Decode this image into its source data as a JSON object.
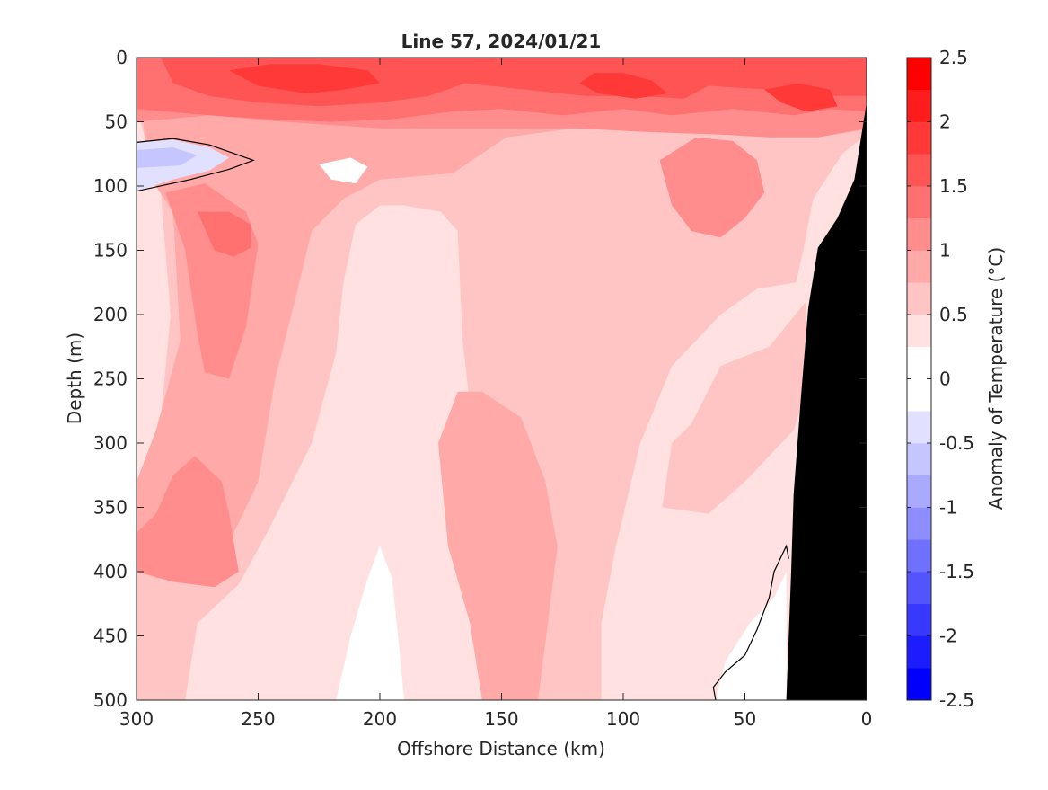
{
  "chart_data": {
    "type": "contour",
    "title": "Line 57, 2024/01/21",
    "xlabel": "Offshore Distance (km)",
    "ylabel": "Depth (m)",
    "x_reversed": true,
    "y_reversed": true,
    "xlim": [
      0,
      300
    ],
    "ylim": [
      0,
      500
    ],
    "x_ticks": [
      300,
      250,
      200,
      150,
      100,
      50,
      0
    ],
    "y_ticks": [
      0,
      50,
      100,
      150,
      200,
      250,
      300,
      350,
      400,
      450,
      500
    ],
    "colorbar": {
      "label": "Anomaly of Temperature (°C)",
      "range": [
        -2.5,
        2.5
      ],
      "ticks": [
        -2.5,
        -2,
        -1.5,
        -1,
        -0.5,
        0,
        0.5,
        1,
        1.5,
        2,
        2.5
      ],
      "tick_labels": [
        "-2.5",
        "-2",
        "-1.5",
        "-1",
        "-0.5",
        "0",
        "0.5",
        "1",
        "1.5",
        "2",
        "2.5"
      ],
      "levels": [
        -2.5,
        -2.25,
        -2,
        -1.75,
        -1.5,
        -1.25,
        -1,
        -0.75,
        -0.5,
        -0.25,
        0.25,
        0.5,
        0.75,
        1,
        1.25,
        1.5,
        1.75,
        2,
        2.25,
        2.5
      ],
      "colors": [
        "#0000ff",
        "#1c1cff",
        "#3838ff",
        "#5454ff",
        "#7070ff",
        "#8d8dff",
        "#a9a9ff",
        "#c5c5ff",
        "#e1e1ff",
        "#ffffff",
        "#ffffff",
        "#ffe1e1",
        "#ffc5c5",
        "#ffa9a9",
        "#ff8d8d",
        "#ff7070",
        "#ff5454",
        "#ff3838",
        "#ff1c1c",
        "#ff0000"
      ]
    },
    "bathymetry_color": "#000000",
    "bathymetry": [
      {
        "x": 0,
        "depth": 35
      },
      {
        "x": 5,
        "depth": 95
      },
      {
        "x": 12,
        "depth": 125
      },
      {
        "x": 20,
        "depth": 148
      },
      {
        "x": 24,
        "depth": 195
      },
      {
        "x": 27,
        "depth": 265
      },
      {
        "x": 30,
        "depth": 340
      },
      {
        "x": 31,
        "depth": 400
      },
      {
        "x": 32,
        "depth": 450
      },
      {
        "x": 33,
        "depth": 500
      }
    ],
    "regions": [
      {
        "value": 0.5,
        "points": [
          [
            300,
            0
          ],
          [
            0,
            0
          ],
          [
            0,
            500
          ],
          [
            300,
            500
          ]
        ]
      },
      {
        "value": 0.75,
        "points": [
          [
            300,
            40
          ],
          [
            290,
            105
          ],
          [
            286,
            200
          ],
          [
            292,
            320
          ],
          [
            300,
            350
          ],
          [
            300,
            500
          ],
          [
            280,
            500
          ],
          [
            275,
            440
          ],
          [
            258,
            410
          ],
          [
            245,
            365
          ],
          [
            228,
            300
          ],
          [
            218,
            230
          ],
          [
            215,
            175
          ],
          [
            210,
            130
          ],
          [
            200,
            115
          ],
          [
            190,
            115
          ],
          [
            175,
            120
          ],
          [
            168,
            135
          ],
          [
            166,
            220
          ],
          [
            160,
            320
          ],
          [
            155,
            420
          ],
          [
            151,
            500
          ],
          [
            109,
            500
          ],
          [
            109,
            440
          ],
          [
            103,
            380
          ],
          [
            93,
            300
          ],
          [
            80,
            240
          ],
          [
            60,
            200
          ],
          [
            45,
            180
          ],
          [
            29,
            175
          ],
          [
            26,
            150
          ],
          [
            22,
            110
          ],
          [
            10,
            75
          ],
          [
            0,
            60
          ],
          [
            0,
            0
          ]
        ]
      },
      {
        "value": 0.75,
        "points": [
          [
            84,
            350
          ],
          [
            80,
            300
          ],
          [
            72,
            285
          ],
          [
            60,
            240
          ],
          [
            40,
            225
          ],
          [
            25,
            190
          ],
          [
            25,
            260
          ],
          [
            30,
            290
          ],
          [
            50,
            330
          ],
          [
            65,
            355
          ]
        ]
      },
      {
        "value": 1.0,
        "points": [
          [
            295,
            92
          ],
          [
            285,
            120
          ],
          [
            282,
            220
          ],
          [
            292,
            290
          ],
          [
            300,
            330
          ],
          [
            300,
            375
          ],
          [
            292,
            405
          ],
          [
            270,
            405
          ],
          [
            260,
            370
          ],
          [
            250,
            330
          ],
          [
            243,
            250
          ],
          [
            235,
            190
          ],
          [
            228,
            135
          ],
          [
            215,
            110
          ],
          [
            200,
            95
          ],
          [
            170,
            90
          ],
          [
            148,
            62
          ],
          [
            120,
            55
          ],
          [
            80,
            55
          ],
          [
            60,
            58
          ],
          [
            40,
            62
          ],
          [
            20,
            62
          ],
          [
            0,
            56
          ],
          [
            0,
            0
          ],
          [
            300,
            0
          ]
        ]
      },
      {
        "value": 1.0,
        "points": [
          [
            176,
            300
          ],
          [
            172,
            380
          ],
          [
            163,
            440
          ],
          [
            158,
            500
          ],
          [
            135,
            500
          ],
          [
            131,
            440
          ],
          [
            127,
            380
          ],
          [
            132,
            330
          ],
          [
            142,
            280
          ],
          [
            158,
            260
          ],
          [
            168,
            260
          ]
        ]
      },
      {
        "value": 1.25,
        "points": [
          [
            300,
            0
          ],
          [
            300,
            50
          ],
          [
            270,
            45
          ],
          [
            240,
            50
          ],
          [
            200,
            55
          ],
          [
            175,
            55
          ],
          [
            150,
            55
          ],
          [
            120,
            55
          ],
          [
            90,
            58
          ],
          [
            60,
            60
          ],
          [
            40,
            62
          ],
          [
            20,
            62
          ],
          [
            0,
            55
          ],
          [
            0,
            0
          ]
        ]
      },
      {
        "value": 1.25,
        "points": [
          [
            288,
            105
          ],
          [
            280,
            150
          ],
          [
            275,
            215
          ],
          [
            272,
            245
          ],
          [
            262,
            250
          ],
          [
            255,
            210
          ],
          [
            250,
            145
          ],
          [
            255,
            120
          ],
          [
            272,
            98
          ]
        ]
      },
      {
        "value": 1.25,
        "points": [
          [
            300,
            370
          ],
          [
            292,
            355
          ],
          [
            285,
            325
          ],
          [
            276,
            310
          ],
          [
            265,
            330
          ],
          [
            262,
            355
          ],
          [
            258,
            400
          ],
          [
            268,
            412
          ],
          [
            285,
            408
          ],
          [
            300,
            400
          ]
        ]
      },
      {
        "value": 1.25,
        "points": [
          [
            85,
            80
          ],
          [
            80,
            115
          ],
          [
            72,
            135
          ],
          [
            60,
            140
          ],
          [
            50,
            125
          ],
          [
            42,
            105
          ],
          [
            45,
            80
          ],
          [
            55,
            65
          ],
          [
            70,
            62
          ]
        ]
      },
      {
        "value": 1.5,
        "points": [
          [
            300,
            0
          ],
          [
            300,
            40
          ],
          [
            270,
            45
          ],
          [
            245,
            48
          ],
          [
            220,
            50
          ],
          [
            195,
            48
          ],
          [
            170,
            42
          ],
          [
            150,
            40
          ],
          [
            125,
            45
          ],
          [
            100,
            40
          ],
          [
            80,
            45
          ],
          [
            55,
            40
          ],
          [
            30,
            45
          ],
          [
            15,
            40
          ],
          [
            0,
            42
          ],
          [
            0,
            0
          ]
        ]
      },
      {
        "value": 1.5,
        "points": [
          [
            275,
            120
          ],
          [
            268,
            150
          ],
          [
            260,
            155
          ],
          [
            253,
            148
          ],
          [
            253,
            130
          ],
          [
            262,
            120
          ]
        ]
      },
      {
        "value": 1.75,
        "points": [
          [
            290,
            0
          ],
          [
            285,
            20
          ],
          [
            270,
            30
          ],
          [
            250,
            35
          ],
          [
            225,
            38
          ],
          [
            200,
            35
          ],
          [
            180,
            30
          ],
          [
            165,
            20
          ],
          [
            140,
            25
          ],
          [
            115,
            30
          ],
          [
            95,
            30
          ],
          [
            75,
            32
          ],
          [
            65,
            22
          ],
          [
            40,
            25
          ],
          [
            20,
            30
          ],
          [
            0,
            30
          ],
          [
            0,
            0
          ]
        ]
      },
      {
        "value": 2.0,
        "points": [
          [
            262,
            10
          ],
          [
            250,
            22
          ],
          [
            230,
            28
          ],
          [
            215,
            25
          ],
          [
            200,
            20
          ],
          [
            205,
            10
          ],
          [
            225,
            5
          ],
          [
            245,
            5
          ]
        ]
      },
      {
        "value": 2.0,
        "points": [
          [
            118,
            20
          ],
          [
            110,
            28
          ],
          [
            95,
            32
          ],
          [
            82,
            28
          ],
          [
            88,
            18
          ],
          [
            100,
            12
          ],
          [
            112,
            12
          ]
        ]
      },
      {
        "value": 2.0,
        "points": [
          [
            42,
            25
          ],
          [
            35,
            35
          ],
          [
            25,
            42
          ],
          [
            12,
            38
          ],
          [
            15,
            25
          ],
          [
            28,
            20
          ]
        ]
      },
      {
        "value": 0.25,
        "points": [
          [
            225,
            83
          ],
          [
            220,
            95
          ],
          [
            210,
            98
          ],
          [
            205,
            85
          ],
          [
            212,
            78
          ]
        ]
      },
      {
        "value": 0.25,
        "points": [
          [
            218,
            500
          ],
          [
            212,
            450
          ],
          [
            205,
            405
          ],
          [
            200,
            380
          ],
          [
            195,
            405
          ],
          [
            192,
            460
          ],
          [
            190,
            500
          ]
        ]
      },
      {
        "value": 0.25,
        "points": [
          [
            62,
            500
          ],
          [
            58,
            470
          ],
          [
            48,
            440
          ],
          [
            38,
            420
          ],
          [
            33,
            400
          ],
          [
            33,
            500
          ]
        ]
      },
      {
        "value": -0.5,
        "points": [
          [
            300,
            66
          ],
          [
            285,
            64
          ],
          [
            270,
            70
          ],
          [
            262,
            78
          ],
          [
            270,
            88
          ],
          [
            285,
            95
          ],
          [
            300,
            104
          ]
        ]
      },
      {
        "value": -0.75,
        "points": [
          [
            300,
            72
          ],
          [
            285,
            70
          ],
          [
            275,
            76
          ],
          [
            282,
            84
          ],
          [
            300,
            86
          ]
        ]
      }
    ],
    "contour_lines": [
      {
        "value": 0,
        "points": [
          [
            300,
            66
          ],
          [
            285,
            63
          ],
          [
            270,
            68
          ],
          [
            252,
            80
          ],
          [
            262,
            87
          ],
          [
            278,
            95
          ],
          [
            300,
            104
          ]
        ]
      },
      {
        "value": 0,
        "points": [
          [
            62,
            500
          ],
          [
            63,
            490
          ],
          [
            58,
            478
          ],
          [
            50,
            465
          ],
          [
            45,
            445
          ],
          [
            40,
            420
          ],
          [
            38,
            400
          ],
          [
            33,
            380
          ],
          [
            32,
            390
          ]
        ]
      }
    ]
  }
}
